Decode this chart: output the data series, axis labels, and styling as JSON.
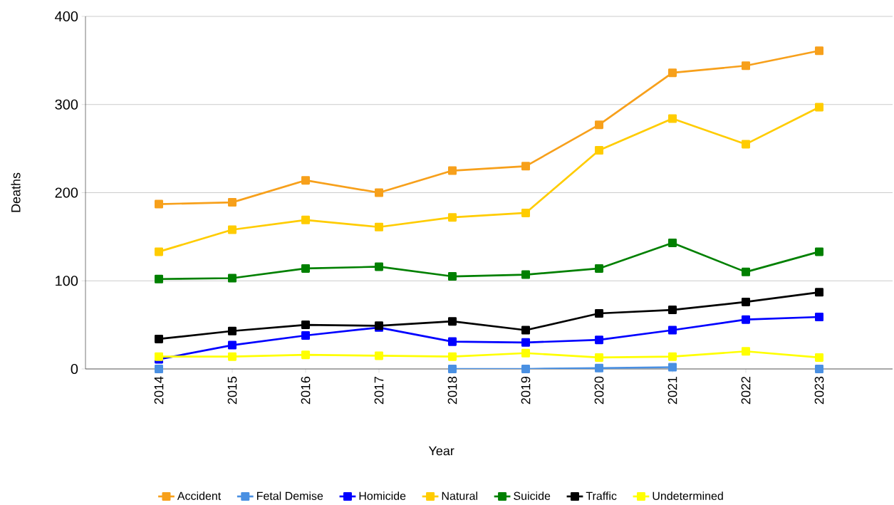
{
  "chart_data": {
    "type": "line",
    "xlabel": "Year",
    "ylabel": "Deaths",
    "categories": [
      "2014",
      "2015",
      "2016",
      "2017",
      "2018",
      "2019",
      "2020",
      "2021",
      "2022",
      "2023"
    ],
    "series": [
      {
        "name": "Accident",
        "color": "#f7a01b",
        "values": [
          187,
          189,
          214,
          200,
          225,
          230,
          277,
          336,
          344,
          361
        ]
      },
      {
        "name": "Fetal Demise",
        "color": "#4a90e2",
        "values": [
          0,
          null,
          null,
          null,
          0,
          0,
          1,
          2,
          null,
          0
        ]
      },
      {
        "name": "Homicide",
        "color": "#0000ff",
        "values": [
          11,
          27,
          38,
          47,
          31,
          30,
          33,
          44,
          56,
          59
        ]
      },
      {
        "name": "Natural",
        "color": "#ffcc00",
        "values": [
          133,
          158,
          169,
          161,
          172,
          177,
          248,
          284,
          255,
          297
        ]
      },
      {
        "name": "Suicide",
        "color": "#008000",
        "values": [
          102,
          103,
          114,
          116,
          105,
          107,
          114,
          143,
          110,
          133
        ]
      },
      {
        "name": "Traffic",
        "color": "#000000",
        "values": [
          34,
          43,
          50,
          49,
          54,
          44,
          63,
          67,
          76,
          87
        ]
      },
      {
        "name": "Undetermined",
        "color": "#ffff00",
        "values": [
          14,
          14,
          16,
          15,
          14,
          18,
          13,
          14,
          20,
          13
        ]
      }
    ],
    "ylim": [
      0,
      400
    ],
    "yticks": [
      0,
      100,
      200,
      300,
      400
    ],
    "grid": "y",
    "legend": "bottom",
    "marker": "square",
    "line_style": "solid"
  }
}
